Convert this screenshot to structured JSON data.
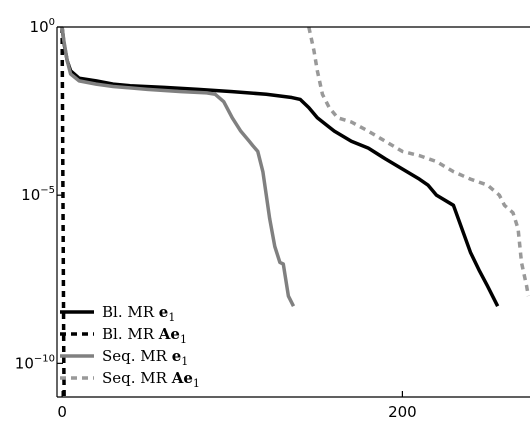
{
  "chart_data": {
    "type": "line",
    "title": "",
    "xlabel": "",
    "ylabel": "",
    "y_scale": "log",
    "xlim": [
      -3,
      275
    ],
    "ylim": [
      1e-11,
      1
    ],
    "x_ticks": [
      {
        "value": 0,
        "label": "0"
      },
      {
        "value": 200,
        "label": "200"
      }
    ],
    "y_ticks": [
      {
        "value": 1,
        "base": "10",
        "exp": "0"
      },
      {
        "value": 1e-05,
        "base": "10",
        "exp": "−5"
      },
      {
        "value": 1e-10,
        "base": "10",
        "exp": "−10"
      }
    ],
    "grid": false,
    "legend_position": "bottom-left",
    "series": [
      {
        "name_parts": [
          "Bl. MR ",
          "e",
          "1"
        ],
        "color": "#000000",
        "dash": "solid",
        "points": [
          [
            0,
            1
          ],
          [
            1,
            0.35
          ],
          [
            3,
            0.1
          ],
          [
            5,
            0.05
          ],
          [
            10,
            0.03
          ],
          [
            20,
            0.025
          ],
          [
            30,
            0.02
          ],
          [
            40,
            0.018
          ],
          [
            60,
            0.016
          ],
          [
            80,
            0.014
          ],
          [
            100,
            0.012
          ],
          [
            120,
            0.01
          ],
          [
            135,
            0.008
          ],
          [
            140,
            0.007
          ],
          [
            145,
            0.004
          ],
          [
            150,
            0.002
          ],
          [
            160,
            0.0008
          ],
          [
            170,
            0.0004
          ],
          [
            180,
            0.00025
          ],
          [
            190,
            0.00012
          ],
          [
            200,
            6e-05
          ],
          [
            210,
            3e-05
          ],
          [
            215,
            2e-05
          ],
          [
            220,
            1e-05
          ],
          [
            230,
            5e-06
          ],
          [
            235,
            1e-06
          ],
          [
            240,
            2e-07
          ],
          [
            245,
            6e-08
          ],
          [
            250,
            2e-08
          ],
          [
            256,
            5e-09
          ]
        ]
      },
      {
        "name_parts": [
          "Bl. MR ",
          "Ae",
          "1"
        ],
        "color": "#000000",
        "dash": "dashed",
        "points": [
          [
            0,
            1
          ],
          [
            0.5,
            1e-05
          ],
          [
            1,
            1e-10
          ],
          [
            1.2,
            1e-11
          ]
        ]
      },
      {
        "name_parts": [
          "Seq. MR ",
          "e",
          "1"
        ],
        "color": "#808080",
        "dash": "solid",
        "points": [
          [
            0,
            1
          ],
          [
            1,
            0.4
          ],
          [
            3,
            0.1
          ],
          [
            5,
            0.04
          ],
          [
            10,
            0.025
          ],
          [
            20,
            0.02
          ],
          [
            30,
            0.017
          ],
          [
            50,
            0.014
          ],
          [
            70,
            0.012
          ],
          [
            85,
            0.011
          ],
          [
            90,
            0.01
          ],
          [
            95,
            0.006
          ],
          [
            100,
            0.002
          ],
          [
            105,
            0.0008
          ],
          [
            110,
            0.0004
          ],
          [
            112,
            0.0003
          ],
          [
            115,
            0.0002
          ],
          [
            118,
            5e-05
          ],
          [
            120,
            1e-05
          ],
          [
            122,
            2e-06
          ],
          [
            125,
            3e-07
          ],
          [
            128,
            1e-07
          ],
          [
            130,
            9e-08
          ],
          [
            133,
            1e-08
          ],
          [
            136,
            5e-09
          ]
        ]
      },
      {
        "name_parts": [
          "Seq. MR ",
          "Ae",
          "1"
        ],
        "color": "#999999",
        "dash": "dashed",
        "points": [
          [
            145,
            1
          ],
          [
            148,
            0.2
          ],
          [
            150,
            0.05
          ],
          [
            153,
            0.01
          ],
          [
            157,
            0.004
          ],
          [
            162,
            0.002
          ],
          [
            170,
            0.0015
          ],
          [
            180,
            0.0008
          ],
          [
            190,
            0.0004
          ],
          [
            200,
            0.0002
          ],
          [
            210,
            0.00015
          ],
          [
            220,
            0.0001
          ],
          [
            230,
            5e-05
          ],
          [
            240,
            3e-05
          ],
          [
            250,
            2e-05
          ],
          [
            257,
            1e-05
          ],
          [
            260,
            5e-06
          ],
          [
            265,
            3e-06
          ],
          [
            268,
            1e-06
          ],
          [
            270,
            1e-07
          ],
          [
            273,
            2e-08
          ],
          [
            274,
            1e-08
          ]
        ]
      }
    ]
  }
}
